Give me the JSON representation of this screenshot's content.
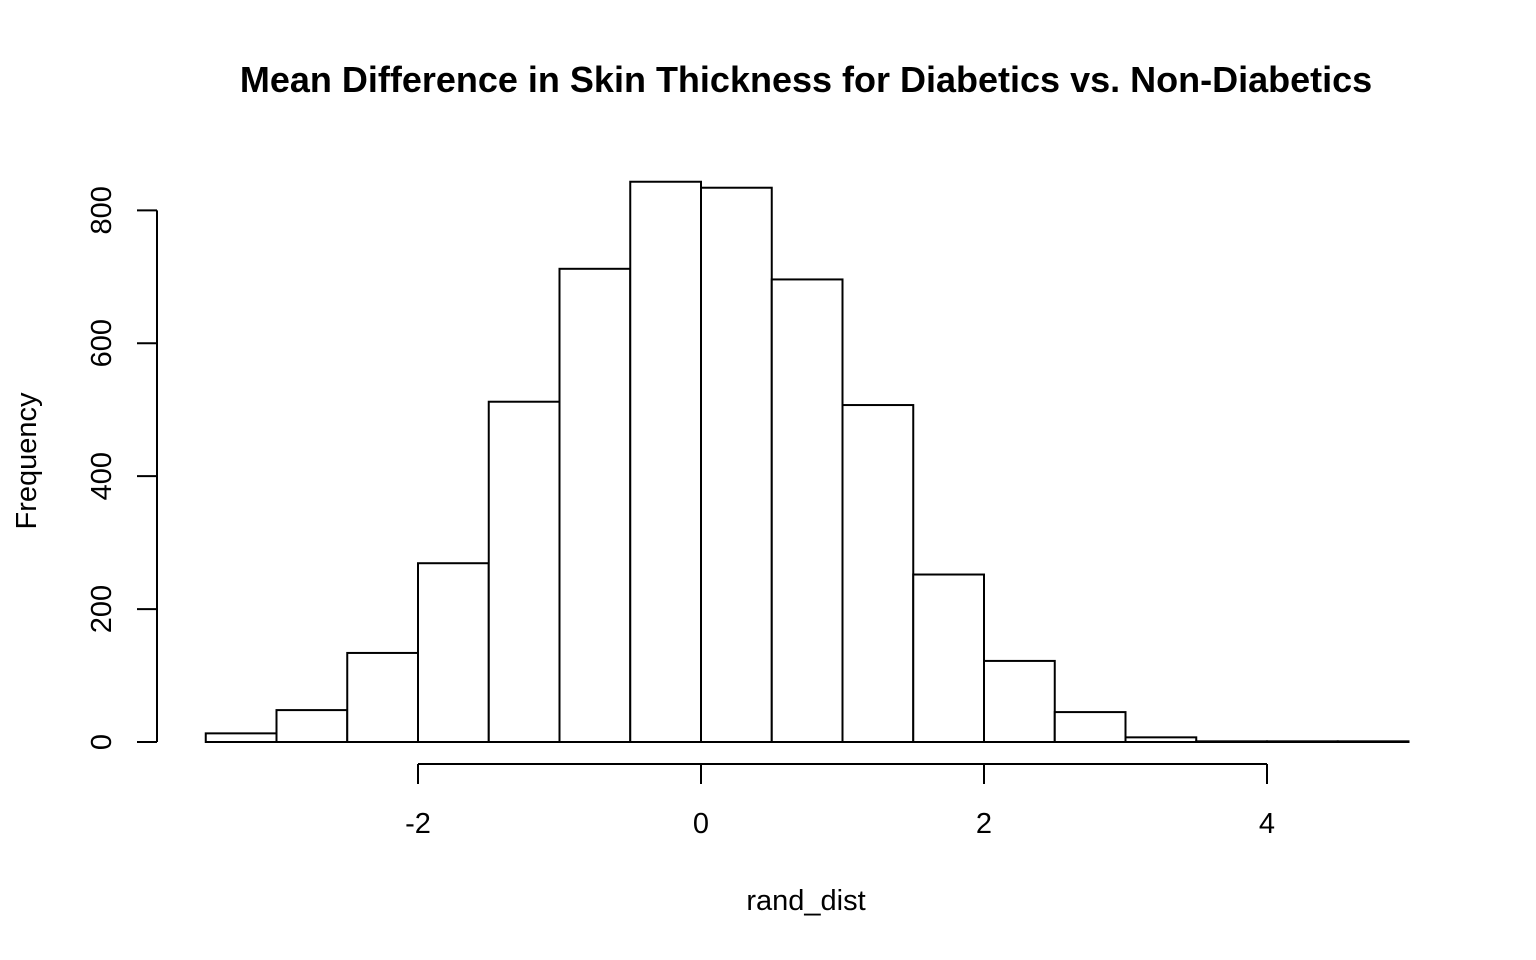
{
  "chart_data": {
    "type": "bar",
    "subtype": "histogram",
    "title": "Mean Difference in Skin Thickness for Diabetics vs. Non-Diabetics",
    "xlabel": "rand_dist",
    "ylabel": "Frequency",
    "bins": [
      {
        "start": -3.5,
        "end": -3.0,
        "count": 13
      },
      {
        "start": -3.0,
        "end": -2.5,
        "count": 48
      },
      {
        "start": -2.5,
        "end": -2.0,
        "count": 134
      },
      {
        "start": -2.0,
        "end": -1.5,
        "count": 269
      },
      {
        "start": -1.5,
        "end": -1.0,
        "count": 512
      },
      {
        "start": -1.0,
        "end": -0.5,
        "count": 712
      },
      {
        "start": -0.5,
        "end": 0.0,
        "count": 843
      },
      {
        "start": 0.0,
        "end": 0.5,
        "count": 834
      },
      {
        "start": 0.5,
        "end": 1.0,
        "count": 696
      },
      {
        "start": 1.0,
        "end": 1.5,
        "count": 507
      },
      {
        "start": 1.5,
        "end": 2.0,
        "count": 252
      },
      {
        "start": 2.0,
        "end": 2.5,
        "count": 122
      },
      {
        "start": 2.5,
        "end": 3.0,
        "count": 45
      },
      {
        "start": 3.0,
        "end": 3.5,
        "count": 7
      },
      {
        "start": 3.5,
        "end": 4.0,
        "count": 1
      },
      {
        "start": 4.0,
        "end": 4.5,
        "count": 1
      },
      {
        "start": 4.5,
        "end": 5.0,
        "count": 1
      }
    ],
    "xlim": [
      -3.5,
      5.0
    ],
    "ylim": [
      0,
      843
    ],
    "x_ticks": [
      -2,
      0,
      2,
      4
    ],
    "x_tick_labels": [
      "-2",
      "0",
      "2",
      "4"
    ],
    "y_ticks": [
      0,
      200,
      400,
      600,
      800
    ],
    "y_tick_labels": [
      "0",
      "200",
      "400",
      "600",
      "800"
    ],
    "grid": false,
    "legend": "none",
    "colors": {
      "bar_fill": "#ffffff",
      "bar_stroke": "#000000"
    }
  }
}
